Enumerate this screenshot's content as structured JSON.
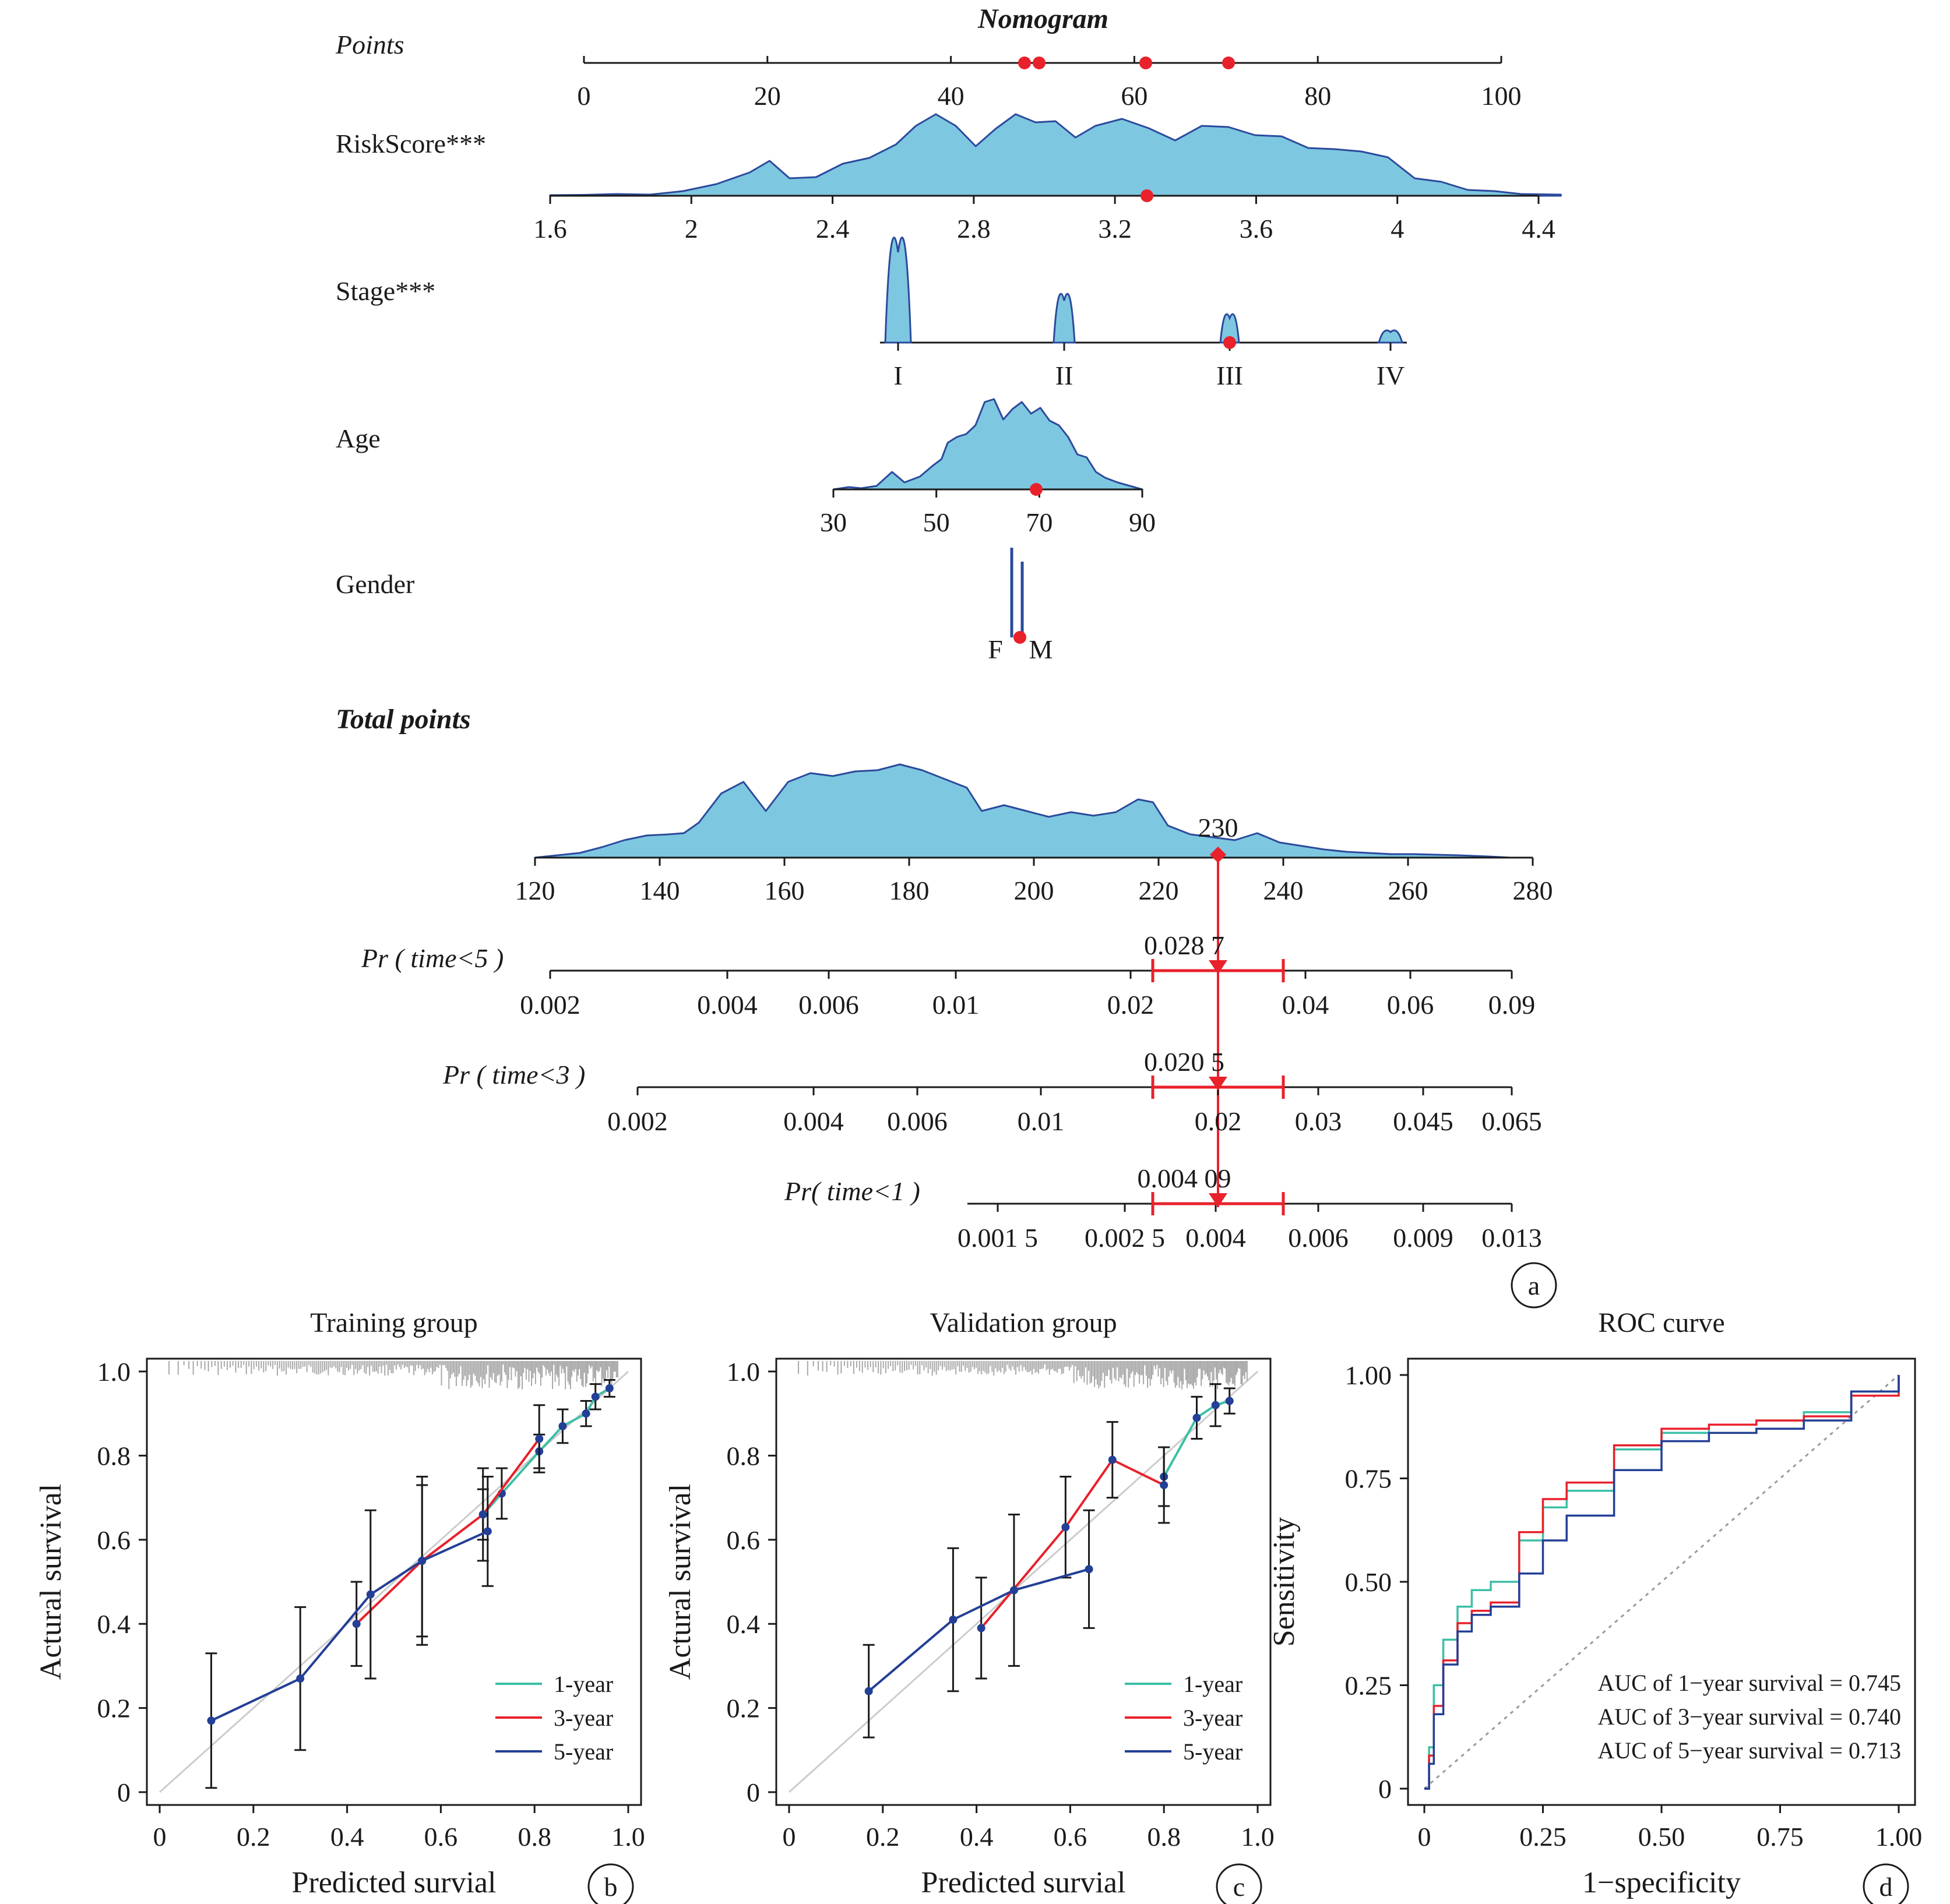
{
  "nomogram": {
    "title": "Nomogram",
    "variables": [
      {
        "label": "Points",
        "ticks": [
          "0",
          "20",
          "40",
          "60",
          "80",
          "100"
        ]
      },
      {
        "label": "RiskScore***",
        "ticks": [
          "1.6",
          "2",
          "2.4",
          "2.8",
          "3.2",
          "3.6",
          "4",
          "4.4"
        ]
      },
      {
        "label": "Stage***",
        "ticks": [
          "I",
          "II",
          "III",
          "IV"
        ]
      },
      {
        "label": "Age",
        "ticks": [
          "30",
          "50",
          "70",
          "90"
        ]
      },
      {
        "label": "Gender",
        "ticks": [
          "F",
          "M"
        ]
      }
    ],
    "total_label": "Total points",
    "total_ticks": [
      "120",
      "140",
      "160",
      "180",
      "200",
      "220",
      "240",
      "260",
      "280"
    ],
    "total_value": "230",
    "probabilities": [
      {
        "label": "Pr ( time<5 )",
        "value": "0.028 7",
        "ticks": [
          "0.002",
          "0.004",
          "0.006",
          "0.01",
          "0.02",
          "0.04",
          "0.06",
          "0.09"
        ]
      },
      {
        "label": "Pr ( time<3 )",
        "value": "0.020 5",
        "ticks": [
          "0.002",
          "0.004",
          "0.006",
          "0.01",
          "0.02",
          "0.03",
          "0.045",
          "0.065"
        ]
      },
      {
        "label": "Pr( time<1 )",
        "value": "0.004 09",
        "ticks": [
          "0.001 5",
          "0.002 5",
          "0.004",
          "0.006",
          "0.009",
          "0.013"
        ]
      }
    ],
    "panel_letter": "a"
  },
  "panel_letters": [
    "b",
    "c",
    "d"
  ],
  "colors": {
    "red": "#e8212b",
    "blue": "#233f96",
    "teal": "#3dbfa6",
    "fill": "#7ec7e0",
    "edge": "#2b4a9c",
    "grey": "#a8a8a8"
  },
  "chart_data": [
    {
      "type": "line",
      "title": "Training group",
      "xlabel": "Predicted survial",
      "ylabel": "Actural survival",
      "xlim": [
        0,
        1
      ],
      "ylim": [
        0,
        1
      ],
      "xticks": [
        "0",
        "0.2",
        "0.4",
        "0.6",
        "0.8",
        "1.0"
      ],
      "yticks": [
        "0",
        "0.2",
        "0.4",
        "0.6",
        "0.8",
        "1.0"
      ],
      "legend": [
        "1-year",
        "3-year",
        "5-year"
      ],
      "legend_position": "bottom-right",
      "series": [
        {
          "name": "1-year",
          "x": [
            0.69,
            0.73,
            0.81,
            0.86,
            0.91,
            0.93,
            0.96
          ],
          "y": [
            0.66,
            0.71,
            0.81,
            0.87,
            0.9,
            0.94,
            0.96
          ],
          "err": [
            0.06,
            0.06,
            0.04,
            0.04,
            0.03,
            0.03,
            0.02
          ]
        },
        {
          "name": "3-year",
          "x": [
            0.42,
            0.56,
            0.69,
            0.81
          ],
          "y": [
            0.4,
            0.55,
            0.66,
            0.84
          ],
          "err": [
            0.1,
            0.18,
            0.11,
            0.08
          ]
        },
        {
          "name": "5-year",
          "x": [
            0.11,
            0.3,
            0.45,
            0.56,
            0.7
          ],
          "y": [
            0.17,
            0.27,
            0.47,
            0.55,
            0.62
          ],
          "err": [
            0.16,
            0.17,
            0.2,
            0.2,
            0.13
          ]
        }
      ]
    },
    {
      "type": "line",
      "title": "Validation group",
      "xlabel": "Predicted survial",
      "ylabel": "Actural survival",
      "xlim": [
        0,
        1
      ],
      "ylim": [
        0,
        1
      ],
      "xticks": [
        "0",
        "0.2",
        "0.4",
        "0.6",
        "0.8",
        "1.0"
      ],
      "yticks": [
        "0",
        "0.2",
        "0.4",
        "0.6",
        "0.8",
        "1.0"
      ],
      "legend": [
        "1-year",
        "3-year",
        "5-year"
      ],
      "legend_position": "bottom-right",
      "series": [
        {
          "name": "1-year",
          "x": [
            0.8,
            0.87,
            0.91,
            0.94
          ],
          "y": [
            0.75,
            0.89,
            0.92,
            0.93
          ],
          "err": [
            0.07,
            0.05,
            0.05,
            0.03
          ]
        },
        {
          "name": "3-year",
          "x": [
            0.41,
            0.59,
            0.69,
            0.8
          ],
          "y": [
            0.39,
            0.63,
            0.79,
            0.73
          ],
          "err": [
            0.12,
            0.12,
            0.09,
            0.09
          ]
        },
        {
          "name": "5-year",
          "x": [
            0.17,
            0.35,
            0.48,
            0.64
          ],
          "y": [
            0.24,
            0.41,
            0.48,
            0.53
          ],
          "err": [
            0.11,
            0.17,
            0.18,
            0.14
          ]
        }
      ]
    },
    {
      "type": "line",
      "title": "ROC curve",
      "xlabel": "1−specificity",
      "ylabel": "Sensitivity",
      "xlim": [
        0,
        1
      ],
      "ylim": [
        0,
        1
      ],
      "xticks": [
        "0",
        "0.25",
        "0.50",
        "0.75",
        "1.00"
      ],
      "yticks": [
        "0",
        "0.25",
        "0.50",
        "0.75",
        "1.00"
      ],
      "legend": [
        "AUC of 1−year survival = 0.745",
        "AUC of 3−year survival = 0.740",
        "AUC of 5−year survival = 0.713"
      ],
      "legend_position": "bottom-right",
      "series": [
        {
          "name": "AUC of 1−year survival = 0.745",
          "x": [
            0,
            0.01,
            0.02,
            0.04,
            0.07,
            0.1,
            0.14,
            0.2,
            0.25,
            0.3,
            0.4,
            0.5,
            0.6,
            0.7,
            0.8,
            0.9,
            1.0
          ],
          "y": [
            0,
            0.1,
            0.25,
            0.36,
            0.44,
            0.48,
            0.5,
            0.6,
            0.68,
            0.72,
            0.82,
            0.86,
            0.88,
            0.89,
            0.91,
            0.96,
            1.0
          ]
        },
        {
          "name": "AUC of 3−year survival = 0.740",
          "x": [
            0,
            0.01,
            0.02,
            0.04,
            0.07,
            0.1,
            0.14,
            0.2,
            0.25,
            0.3,
            0.4,
            0.5,
            0.6,
            0.7,
            0.8,
            0.9,
            1.0
          ],
          "y": [
            0,
            0.08,
            0.2,
            0.31,
            0.4,
            0.43,
            0.45,
            0.62,
            0.7,
            0.74,
            0.83,
            0.87,
            0.88,
            0.89,
            0.9,
            0.95,
            1.0
          ]
        },
        {
          "name": "AUC of 5−year survival = 0.713",
          "x": [
            0,
            0.01,
            0.02,
            0.04,
            0.07,
            0.1,
            0.14,
            0.2,
            0.25,
            0.3,
            0.4,
            0.5,
            0.6,
            0.7,
            0.8,
            0.9,
            1.0
          ],
          "y": [
            0,
            0.06,
            0.18,
            0.3,
            0.38,
            0.42,
            0.44,
            0.52,
            0.6,
            0.66,
            0.77,
            0.84,
            0.86,
            0.87,
            0.89,
            0.96,
            1.0
          ]
        }
      ]
    }
  ]
}
